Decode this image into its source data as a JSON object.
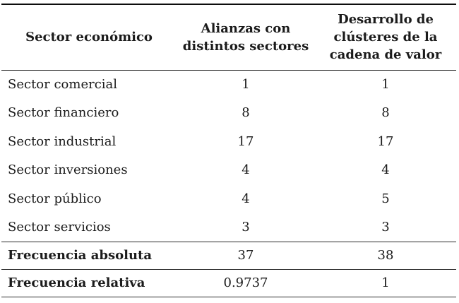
{
  "colors": {
    "text": "#1b1b1b",
    "rule": "#2a2a2a",
    "background": "#ffffff"
  },
  "table": {
    "header": {
      "col1": "Sector económico",
      "col2": "Alianzas con distintos sectores",
      "col2_lines": [
        "Alianzas con",
        "distintos sectores"
      ],
      "col3": "Desarrollo de clústeres de la cadena de valor",
      "col3_lines": [
        "Desarrollo de",
        "clústeres de la",
        "cadena de valor"
      ]
    },
    "rows": [
      {
        "label": "Sector comercial",
        "col2": "1",
        "col3": "1"
      },
      {
        "label": "Sector financiero",
        "col2": "8",
        "col3": "8"
      },
      {
        "label": "Sector industrial",
        "col2": "17",
        "col3": "17"
      },
      {
        "label": "Sector inversiones",
        "col2": "4",
        "col3": "4"
      },
      {
        "label": "Sector público",
        "col2": "4",
        "col3": "5"
      },
      {
        "label": "Sector servicios",
        "col2": "3",
        "col3": "3"
      }
    ],
    "summary_rows": [
      {
        "label": "Frecuencia absoluta",
        "col2": "37",
        "col3": "38"
      },
      {
        "label": "Frecuencia relativa",
        "col2": "0.9737",
        "col3": "1"
      }
    ]
  },
  "chart_data": {
    "type": "table",
    "title": "",
    "columns": [
      "Sector económico",
      "Alianzas con distintos sectores",
      "Desarrollo de clústeres de la cadena de valor"
    ],
    "rows": [
      [
        "Sector comercial",
        1,
        1
      ],
      [
        "Sector financiero",
        8,
        8
      ],
      [
        "Sector industrial",
        17,
        17
      ],
      [
        "Sector inversiones",
        4,
        4
      ],
      [
        "Sector público",
        4,
        5
      ],
      [
        "Sector servicios",
        3,
        3
      ]
    ],
    "summary_rows": [
      [
        "Frecuencia absoluta",
        37,
        38
      ],
      [
        "Frecuencia relativa",
        0.9737,
        1
      ]
    ]
  }
}
